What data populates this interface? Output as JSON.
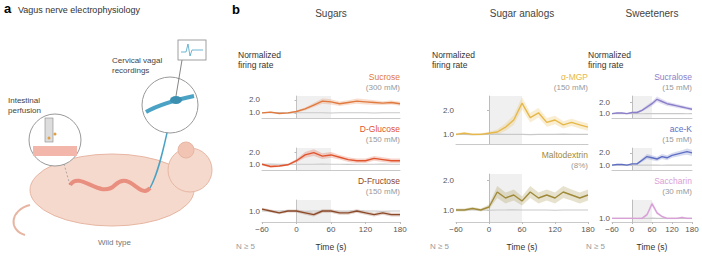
{
  "panel_a": {
    "letter": "a",
    "title": "Vagus nerve electrophysiology",
    "perfusion_label": "Intestinal perfusion",
    "recording_label": "Cervical vagal recordings",
    "caption": "Wild type"
  },
  "panel_b": {
    "letter": "b"
  },
  "chart_data": [
    {
      "type": "line",
      "group": "Sugars",
      "title": "Sucrose",
      "subtitle": "(300 mM)",
      "ylabel": "Normalized firing rate",
      "x": [
        -60,
        -45,
        -30,
        -15,
        0,
        15,
        30,
        45,
        60,
        75,
        90,
        105,
        120,
        135,
        150,
        165,
        180
      ],
      "xlim": [
        -60,
        180
      ],
      "xticks": [
        {
          "value": -60,
          "label": "−60"
        },
        0,
        60,
        120,
        180
      ],
      "ylim": [
        0.6,
        2.3
      ],
      "yticks": [
        {
          "value": 1,
          "label": "1.0"
        },
        {
          "value": 2,
          "label": "2.0"
        }
      ],
      "tick_labels": "y",
      "grid": false,
      "shaded_x": [
        0,
        60
      ],
      "series": [
        {
          "color": "#c9c9c9",
          "values": [
            1.0,
            1.0,
            1.02,
            0.98,
            1.0,
            1.0,
            1.01,
            1.0,
            0.99,
            1.0,
            1.0,
            1.0,
            1.0,
            0.99,
            1.0,
            1.0,
            1.0
          ]
        },
        {
          "color": "#e07a3f",
          "values": [
            1.0,
            1.05,
            0.95,
            1.0,
            1.1,
            1.3,
            1.6,
            1.9,
            1.85,
            1.7,
            1.8,
            1.9,
            1.85,
            1.8,
            1.75,
            1.8,
            1.7
          ],
          "sem": [
            0.05,
            0.06,
            0.05,
            0.05,
            0.08,
            0.12,
            0.15,
            0.2,
            0.2,
            0.18,
            0.18,
            0.2,
            0.2,
            0.18,
            0.15,
            0.15,
            0.15
          ]
        }
      ]
    },
    {
      "type": "line",
      "group": "Sugars",
      "title": "D-Glucose",
      "subtitle": "(150 mM)",
      "x": [
        -60,
        -45,
        -30,
        -15,
        0,
        15,
        30,
        45,
        60,
        75,
        90,
        105,
        120,
        135,
        150,
        165,
        180
      ],
      "xlim": [
        -60,
        180
      ],
      "xticks": [
        {
          "value": -60,
          "label": "−60"
        },
        0,
        60,
        120,
        180
      ],
      "ylim": [
        0.5,
        2.4
      ],
      "yticks": [
        {
          "value": 1,
          "label": "1.0"
        },
        {
          "value": 2,
          "label": "2.0"
        }
      ],
      "tick_labels": "y",
      "grid": false,
      "shaded_x": [
        0,
        60
      ],
      "series": [
        {
          "color": "#c9c9c9",
          "values": [
            1.0,
            1.01,
            1.0,
            0.99,
            1.0,
            1.0,
            1.0,
            1.01,
            1.0,
            1.0,
            0.99,
            1.0,
            1.0,
            1.0,
            1.01,
            1.0,
            1.0
          ]
        },
        {
          "color": "#e0542e",
          "values": [
            1.0,
            0.8,
            0.85,
            0.95,
            1.3,
            1.8,
            2.0,
            1.7,
            1.8,
            1.6,
            1.4,
            1.3,
            1.3,
            1.5,
            1.4,
            1.3,
            1.3
          ],
          "sem": [
            0.08,
            0.1,
            0.1,
            0.08,
            0.15,
            0.25,
            0.3,
            0.25,
            0.25,
            0.2,
            0.2,
            0.2,
            0.2,
            0.2,
            0.2,
            0.2,
            0.2
          ]
        }
      ]
    },
    {
      "type": "line",
      "group": "Sugars",
      "title": "D-Fructose",
      "subtitle": "(150 mM)",
      "xlabel": "Time (s)",
      "annotation": "N ≥ 5",
      "x": [
        -60,
        -45,
        -30,
        -15,
        0,
        15,
        30,
        45,
        60,
        75,
        90,
        105,
        120,
        135,
        150,
        165,
        180
      ],
      "xlim": [
        -60,
        180
      ],
      "xticks": [
        {
          "value": -60,
          "label": "−60"
        },
        0,
        60,
        120,
        180
      ],
      "ylim": [
        0.7,
        1.3
      ],
      "yticks": [
        {
          "value": 1,
          "label": "1.0"
        }
      ],
      "grid": false,
      "shaded_x": [
        0,
        60
      ],
      "series": [
        {
          "color": "#c9c9c9",
          "values": [
            1.0,
            1.0,
            1.0,
            1.01,
            1.0,
            0.99,
            1.0,
            1.0,
            1.0,
            1.0,
            1.0,
            1.01,
            1.0,
            1.0,
            0.99,
            1.0,
            1.0
          ]
        },
        {
          "color": "#8c4a2a",
          "values": [
            1.05,
            1.0,
            0.95,
            1.0,
            1.0,
            0.95,
            0.9,
            1.0,
            1.0,
            0.95,
            0.95,
            1.0,
            0.95,
            0.9,
            0.95,
            0.9,
            0.9
          ],
          "sem": [
            0.04,
            0.04,
            0.04,
            0.04,
            0.04,
            0.05,
            0.05,
            0.05,
            0.05,
            0.05,
            0.05,
            0.05,
            0.05,
            0.05,
            0.05,
            0.05,
            0.05
          ]
        }
      ]
    },
    {
      "type": "line",
      "group": "Sugar analogs",
      "title": "α-MGP",
      "subtitle": "(150 mM)",
      "ylabel": "Normalized firing rate",
      "x": [
        -60,
        -45,
        -30,
        -15,
        0,
        15,
        30,
        45,
        60,
        75,
        90,
        105,
        120,
        135,
        150,
        165,
        180
      ],
      "xlim": [
        -60,
        180
      ],
      "xticks": [
        {
          "value": -60,
          "label": "−60"
        },
        0,
        60,
        120,
        180
      ],
      "ylim": [
        0.6,
        2.6
      ],
      "yticks": [
        {
          "value": 1,
          "label": "1.0"
        },
        {
          "value": 2,
          "label": "2.0"
        }
      ],
      "tick_labels": "y",
      "grid": false,
      "shaded_x": [
        0,
        60
      ],
      "series": [
        {
          "color": "#c9c9c9",
          "values": [
            1.0,
            1.0,
            0.99,
            1.0,
            1.0,
            1.01,
            1.0,
            1.0,
            1.0,
            0.99,
            1.0,
            1.0,
            1.0,
            1.01,
            1.0,
            1.0,
            1.0
          ]
        },
        {
          "color": "#e6b84a",
          "values": [
            1.0,
            1.05,
            1.0,
            1.0,
            1.05,
            1.1,
            1.3,
            1.6,
            2.3,
            1.7,
            1.9,
            1.5,
            1.6,
            1.4,
            1.5,
            1.4,
            1.3
          ],
          "sem": [
            0.05,
            0.05,
            0.05,
            0.05,
            0.06,
            0.1,
            0.15,
            0.2,
            0.25,
            0.2,
            0.2,
            0.18,
            0.18,
            0.15,
            0.15,
            0.15,
            0.15
          ]
        }
      ]
    },
    {
      "type": "line",
      "group": "Sugar analogs",
      "title": "Maltodextrin",
      "subtitle": "(8%)",
      "xlabel": "Time (s)",
      "annotation": "N ≥ 5",
      "x": [
        -60,
        -45,
        -30,
        -15,
        0,
        15,
        30,
        45,
        60,
        75,
        90,
        105,
        120,
        135,
        150,
        165,
        180
      ],
      "xlim": [
        -60,
        180
      ],
      "xticks": [
        {
          "value": -60,
          "label": "−60"
        },
        0,
        60,
        120,
        180
      ],
      "ylim": [
        0.6,
        2.2
      ],
      "yticks": [
        {
          "value": 1,
          "label": "1.0"
        },
        {
          "value": 2,
          "label": "2.0"
        }
      ],
      "grid": false,
      "shaded_x": [
        0,
        60
      ],
      "series": [
        {
          "color": "#c9c9c9",
          "values": [
            1.0,
            1.0,
            1.0,
            1.0,
            0.99,
            1.0,
            1.0,
            1.01,
            1.0,
            1.0,
            1.0,
            1.0,
            0.99,
            1.0,
            1.0,
            1.0,
            1.0
          ]
        },
        {
          "color": "#a08a3a",
          "values": [
            1.0,
            1.0,
            1.05,
            1.0,
            1.1,
            1.6,
            1.4,
            1.5,
            1.3,
            1.6,
            1.4,
            1.5,
            1.4,
            1.6,
            1.5,
            1.4,
            1.5
          ],
          "sem": [
            0.05,
            0.05,
            0.05,
            0.05,
            0.08,
            0.2,
            0.18,
            0.18,
            0.15,
            0.2,
            0.18,
            0.18,
            0.18,
            0.2,
            0.18,
            0.18,
            0.18
          ]
        }
      ]
    },
    {
      "type": "line",
      "group": "Sweeteners",
      "title": "Sucralose",
      "subtitle": "(15 mM)",
      "ylabel": "Normalized firing rate",
      "x": [
        -60,
        -45,
        -30,
        -15,
        0,
        15,
        30,
        45,
        60,
        75,
        90,
        105,
        120,
        135,
        150,
        165,
        180
      ],
      "xlim": [
        -60,
        180
      ],
      "xticks": [
        {
          "value": -60,
          "label": "−60"
        },
        0,
        60,
        120,
        180
      ],
      "ylim": [
        0.6,
        2.6
      ],
      "yticks": [
        {
          "value": 1,
          "label": "1.0"
        },
        {
          "value": 2,
          "label": "2.0"
        }
      ],
      "tick_labels": "y",
      "grid": false,
      "shaded_x": [
        0,
        60
      ],
      "series": [
        {
          "color": "#c9c9c9",
          "values": [
            1.0,
            1.0,
            1.0,
            1.01,
            1.0,
            1.0,
            0.99,
            1.0,
            1.0,
            1.0,
            1.0,
            1.0,
            1.01,
            1.0,
            1.0,
            0.99,
            1.0
          ]
        },
        {
          "color": "#8b7fc9",
          "values": [
            1.0,
            1.05,
            1.05,
            1.0,
            1.1,
            1.1,
            1.3,
            1.6,
            1.9,
            2.3,
            2.1,
            1.9,
            1.8,
            1.7,
            1.6,
            1.5,
            1.4
          ],
          "sem": [
            0.05,
            0.05,
            0.05,
            0.05,
            0.06,
            0.08,
            0.12,
            0.18,
            0.2,
            0.25,
            0.22,
            0.2,
            0.18,
            0.18,
            0.15,
            0.15,
            0.15
          ]
        }
      ]
    },
    {
      "type": "line",
      "group": "Sweeteners",
      "title": "ace-K",
      "subtitle": "(15 mM)",
      "x": [
        -60,
        -45,
        -30,
        -15,
        0,
        15,
        30,
        45,
        60,
        75,
        90,
        105,
        120,
        135,
        150,
        165,
        180
      ],
      "xlim": [
        -60,
        180
      ],
      "xticks": [
        {
          "value": -60,
          "label": "−60"
        },
        0,
        60,
        120,
        180
      ],
      "ylim": [
        0.6,
        2.4
      ],
      "yticks": [
        {
          "value": 1,
          "label": "1.0"
        },
        {
          "value": 2,
          "label": "2.0"
        }
      ],
      "tick_labels": "y",
      "grid": false,
      "shaded_x": [
        0,
        60
      ],
      "series": [
        {
          "color": "#c9c9c9",
          "values": [
            1.0,
            0.99,
            1.0,
            1.0,
            1.0,
            1.01,
            1.0,
            1.0,
            1.0,
            1.0,
            0.99,
            1.0,
            1.0,
            1.0,
            1.0,
            1.01,
            1.0
          ]
        },
        {
          "color": "#5f6fc4",
          "values": [
            1.0,
            1.05,
            1.05,
            1.0,
            1.1,
            1.1,
            1.4,
            1.7,
            1.6,
            1.5,
            1.7,
            1.6,
            1.8,
            1.9,
            2.0,
            2.1,
            2.0
          ],
          "sem": [
            0.05,
            0.05,
            0.05,
            0.05,
            0.06,
            0.08,
            0.15,
            0.2,
            0.2,
            0.18,
            0.2,
            0.2,
            0.2,
            0.22,
            0.22,
            0.25,
            0.25
          ]
        }
      ]
    },
    {
      "type": "line",
      "group": "Sweeteners",
      "title": "Saccharin",
      "subtitle": "(30 mM)",
      "xlabel": "Time (s)",
      "annotation": "N ≥ 5",
      "x": [
        -60,
        -45,
        -30,
        -15,
        0,
        15,
        30,
        45,
        60,
        75,
        90,
        105,
        120,
        135,
        150,
        165,
        180
      ],
      "xlim": [
        -60,
        180
      ],
      "xticks": [
        {
          "value": -60,
          "label": "−60"
        },
        0,
        60,
        120,
        180
      ],
      "ylim": [
        0.8,
        2.0
      ],
      "yticks": [
        {
          "value": 1,
          "label": "1.0"
        }
      ],
      "grid": false,
      "shaded_x": [
        0,
        60
      ],
      "series": [
        {
          "color": "#c9c9c9",
          "values": [
            1.0,
            1.0,
            1.0,
            1.0,
            1.0,
            0.99,
            1.0,
            1.0,
            1.01,
            1.0,
            1.0,
            1.0,
            1.0,
            1.0,
            0.99,
            1.0,
            1.0
          ]
        },
        {
          "color": "#d9a0d8",
          "values": [
            1.0,
            1.0,
            1.0,
            1.0,
            1.0,
            1.0,
            1.0,
            1.2,
            1.8,
            1.3,
            1.1,
            1.0,
            1.0,
            1.0,
            1.05,
            1.0,
            1.0
          ],
          "sem": [
            0.03,
            0.03,
            0.03,
            0.03,
            0.03,
            0.04,
            0.05,
            0.1,
            0.15,
            0.1,
            0.06,
            0.05,
            0.05,
            0.05,
            0.05,
            0.05,
            0.05
          ]
        }
      ]
    }
  ]
}
